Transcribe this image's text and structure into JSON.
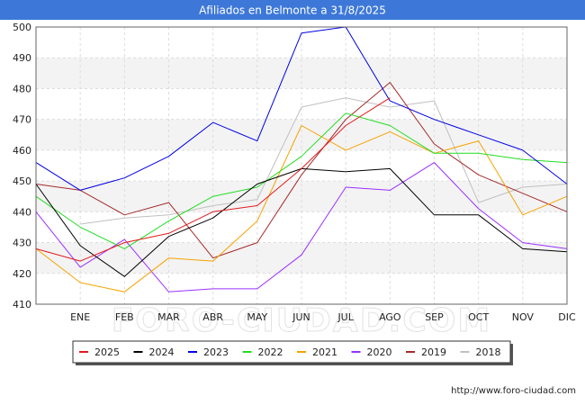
{
  "header": {
    "background": "#3d78d8"
  },
  "footer": {
    "url": "http://www.foro-ciudad.com"
  },
  "watermark": {
    "text": "FORO-CIUDAD.COM"
  },
  "chart_data": {
    "type": "line",
    "title": "Afiliados en Belmonte a 31/8/2025",
    "xlabel": "",
    "ylabel": "",
    "categories": [
      "",
      "ENE",
      "FEB",
      "MAR",
      "ABR",
      "MAY",
      "JUN",
      "JUL",
      "AGO",
      "SEP",
      "OCT",
      "NOV",
      "DIC"
    ],
    "ylim": [
      410,
      500
    ],
    "yticks": [
      410,
      420,
      430,
      440,
      450,
      460,
      470,
      480,
      490,
      500
    ],
    "grid": true,
    "legend_position": "bottom",
    "series": [
      {
        "name": "2025",
        "color": "#e41a1c",
        "values": [
          428,
          424,
          430,
          433,
          440,
          442,
          454,
          468,
          477,
          null,
          null,
          null,
          null
        ]
      },
      {
        "name": "2024",
        "color": "#000000",
        "values": [
          449,
          429,
          419,
          432,
          438,
          449,
          454,
          453,
          454,
          439,
          439,
          428,
          427
        ]
      },
      {
        "name": "2023",
        "color": "#0000e6",
        "values": [
          456,
          447,
          451,
          458,
          469,
          463,
          498,
          500,
          476,
          470,
          465,
          460,
          449
        ]
      },
      {
        "name": "2022",
        "color": "#22dd22",
        "values": [
          445,
          435,
          428,
          437,
          445,
          448,
          458,
          472,
          468,
          459,
          459,
          457,
          456
        ]
      },
      {
        "name": "2021",
        "color": "#f5a300",
        "values": [
          428,
          417,
          414,
          425,
          424,
          437,
          468,
          460,
          466,
          459,
          463,
          439,
          445
        ]
      },
      {
        "name": "2020",
        "color": "#9b30ff",
        "values": [
          440,
          422,
          431,
          414,
          415,
          415,
          426,
          448,
          447,
          456,
          441,
          430,
          428
        ]
      },
      {
        "name": "2019",
        "color": "#a52a2a",
        "values": [
          449,
          447,
          439,
          443,
          425,
          430,
          452,
          470,
          482,
          462,
          452,
          446,
          440
        ]
      },
      {
        "name": "2018",
        "color": "#c0c0c0",
        "values": [
          null,
          436,
          438,
          439,
          442,
          444,
          474,
          477,
          474,
          476,
          443,
          448,
          449
        ]
      }
    ]
  }
}
